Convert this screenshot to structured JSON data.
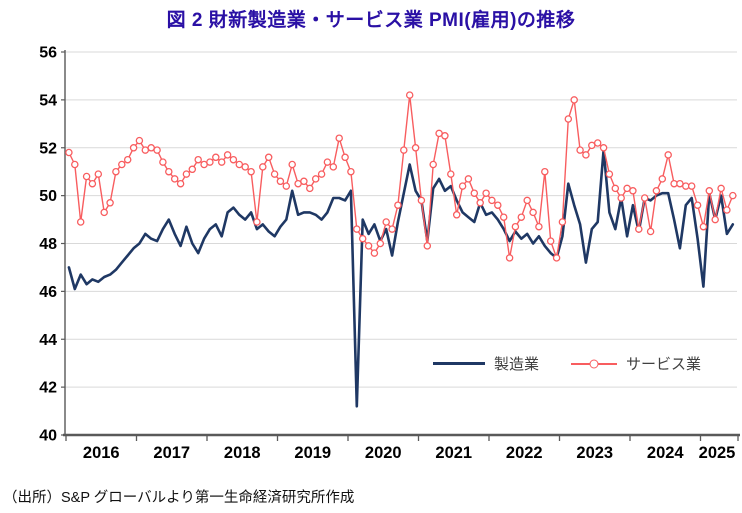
{
  "title": "図 2  財新製造業・サービス業 PMI(雇用)の推移",
  "source_note": "（出所）S&P グローバルより第一生命経済研究所作成",
  "legend": {
    "manufacturing_label": "製造業",
    "services_label": "サービス業"
  },
  "colors": {
    "title": "#2a10a5",
    "manufacturing_line": "#1f3864",
    "services_line": "#f85d5f",
    "marker_fill": "#ffffff",
    "gridline": "#d9d9d9",
    "axis": "#595959",
    "tick_text": "#000000",
    "legend_text": "#404040"
  },
  "y_axis": {
    "min": 40,
    "max": 56,
    "step": 2,
    "ticks": [
      "40",
      "42",
      "44",
      "46",
      "48",
      "50",
      "52",
      "54",
      "56"
    ]
  },
  "x_axis": {
    "labels": [
      "2016",
      "2017",
      "2018",
      "2019",
      "2020",
      "2021",
      "2022",
      "2023",
      "2024",
      "2025"
    ]
  },
  "chart_data": {
    "type": "line",
    "title": "図 2  財新製造業・サービス業 PMI(雇用)の推移",
    "x_start": "2016-01",
    "frequency": "monthly",
    "x_end": "2025-06",
    "ylim": [
      40,
      56
    ],
    "grid": "horizontal",
    "legend_position": "inside-bottom",
    "series": [
      {
        "name": "製造業",
        "color": "#1f3864",
        "markers": false,
        "values": [
          47.0,
          46.1,
          46.7,
          46.3,
          46.5,
          46.4,
          46.6,
          46.7,
          46.9,
          47.2,
          47.5,
          47.8,
          48.0,
          48.4,
          48.2,
          48.1,
          48.6,
          49.0,
          48.4,
          47.9,
          48.7,
          48.0,
          47.6,
          48.2,
          48.6,
          48.8,
          48.3,
          49.3,
          49.5,
          49.2,
          49.0,
          49.3,
          48.6,
          48.8,
          48.5,
          48.3,
          48.7,
          49.0,
          50.2,
          49.2,
          49.3,
          49.3,
          49.2,
          49.0,
          49.3,
          49.9,
          49.9,
          49.8,
          50.2,
          41.2,
          49.0,
          48.4,
          48.8,
          48.1,
          48.6,
          47.5,
          48.9,
          50.1,
          51.3,
          50.2,
          49.8,
          48.1,
          50.3,
          50.7,
          50.2,
          50.4,
          49.8,
          49.3,
          49.1,
          48.9,
          49.7,
          49.2,
          49.3,
          49.0,
          48.6,
          48.1,
          48.5,
          48.2,
          48.4,
          48.0,
          48.3,
          47.9,
          47.6,
          47.4,
          48.3,
          50.5,
          49.6,
          48.8,
          47.2,
          48.6,
          48.9,
          51.9,
          49.3,
          48.6,
          49.9,
          48.3,
          49.6,
          48.5,
          49.9,
          49.8,
          50.0,
          50.1,
          50.1,
          49.0,
          47.8,
          49.6,
          49.9,
          48.2,
          46.2,
          50.1,
          49.0,
          50.0,
          48.4,
          48.8
        ]
      },
      {
        "name": "サービス業",
        "color": "#f85d5f",
        "markers": true,
        "values": [
          51.8,
          51.3,
          48.9,
          50.8,
          50.5,
          50.9,
          49.3,
          49.7,
          51.0,
          51.3,
          51.5,
          52.0,
          52.3,
          51.9,
          52.0,
          51.9,
          51.4,
          51.0,
          50.7,
          50.5,
          50.9,
          51.1,
          51.5,
          51.3,
          51.4,
          51.6,
          51.4,
          51.7,
          51.5,
          51.3,
          51.2,
          51.0,
          48.9,
          51.2,
          51.6,
          50.9,
          50.6,
          50.4,
          51.3,
          50.5,
          50.6,
          50.3,
          50.7,
          50.9,
          51.4,
          51.2,
          52.4,
          51.6,
          51.0,
          48.6,
          48.2,
          47.9,
          47.6,
          48.0,
          48.9,
          48.6,
          49.6,
          51.9,
          54.2,
          52.0,
          49.8,
          47.9,
          51.3,
          52.6,
          52.5,
          50.9,
          49.2,
          50.4,
          50.7,
          50.1,
          49.7,
          50.1,
          49.8,
          49.6,
          49.1,
          47.4,
          48.7,
          49.1,
          49.8,
          49.3,
          48.7,
          51.0,
          48.1,
          47.4,
          48.9,
          53.2,
          54.0,
          51.9,
          51.7,
          52.1,
          52.2,
          52.0,
          50.9,
          50.3,
          49.9,
          50.3,
          50.2,
          48.6,
          49.9,
          48.5,
          50.2,
          50.7,
          51.7,
          50.5,
          50.5,
          50.4,
          50.4,
          49.6,
          48.7,
          50.2,
          49.0,
          50.3,
          49.4,
          50.0
        ]
      }
    ]
  }
}
